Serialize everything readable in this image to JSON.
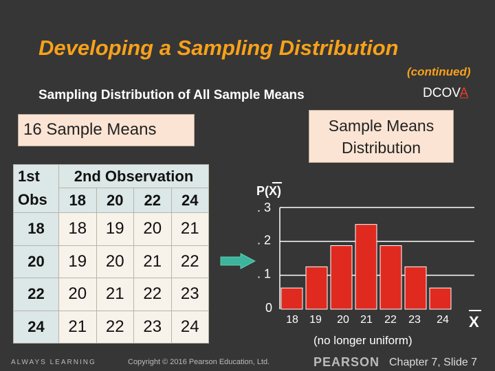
{
  "slide": {
    "title": "Developing a Sampling Distribution",
    "continued": "(continued)",
    "subtitle": "Sampling Distribution of All Sample Means",
    "dcov_main": "DCOV",
    "dcov_highlight": "A",
    "box_left": "16 Sample Means",
    "box_right_line1": "Sample Means",
    "box_right_line2": "Distribution",
    "caption": "(no longer uniform)"
  },
  "table": {
    "header_row1": [
      "1st",
      "2nd Observation"
    ],
    "header_row2": [
      "Obs",
      "18",
      "20",
      "22",
      "24"
    ],
    "rows": [
      {
        "label": "18",
        "cells": [
          "18",
          "19",
          "20",
          "21"
        ]
      },
      {
        "label": "20",
        "cells": [
          "19",
          "20",
          "21",
          "22"
        ]
      },
      {
        "label": "22",
        "cells": [
          "20",
          "21",
          "22",
          "23"
        ]
      },
      {
        "label": "24",
        "cells": [
          "21",
          "22",
          "23",
          "24"
        ]
      }
    ]
  },
  "chart_data": {
    "type": "bar",
    "ylabel": "P(X)",
    "xlabel": "X",
    "y_tick_labels": [
      "0",
      ". 1",
      ". 2",
      ". 3"
    ],
    "y_ticks": [
      0,
      0.1,
      0.2,
      0.3
    ],
    "ylim": [
      0,
      0.3
    ],
    "categories": [
      "18",
      "19",
      "20",
      "21",
      "22",
      "23",
      "24"
    ],
    "values": [
      0.0625,
      0.125,
      0.1875,
      0.25,
      0.1875,
      0.125,
      0.0625
    ],
    "bar_color": "#E02A1F",
    "grid": true
  },
  "footer": {
    "left": "ALWAYS LEARNING",
    "copyright": "Copyright © 2016 Pearson Education, Ltd.",
    "brand": "PEARSON",
    "chapter": "Chapter 7, Slide 7"
  },
  "colors": {
    "background": "#363636",
    "title": "#F7A11A",
    "accent_arrow": "#3CB59C"
  }
}
